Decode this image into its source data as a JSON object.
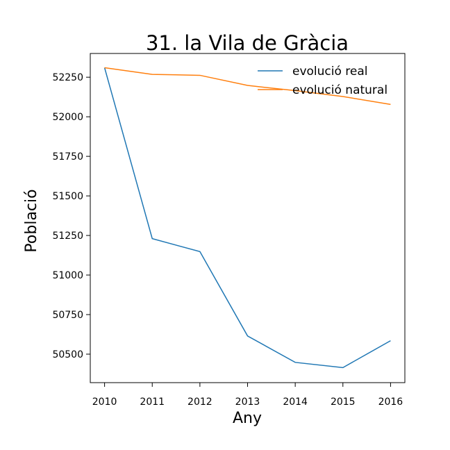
{
  "chart_data": {
    "type": "line",
    "title": "31. la Vila de Gràcia",
    "xlabel": "Any",
    "ylabel": "Població",
    "x": [
      2010,
      2011,
      2012,
      2013,
      2014,
      2015,
      2016
    ],
    "xlim": [
      2009.7,
      2016.3
    ],
    "ylim": [
      50320,
      52400
    ],
    "yticks": [
      50500,
      50750,
      51000,
      51250,
      51500,
      51750,
      52000,
      52250
    ],
    "grid": false,
    "legend_position": "top-right",
    "series": [
      {
        "name": "evolució real",
        "color": "#1f77b4",
        "values": [
          52310,
          51230,
          51148,
          50615,
          50448,
          50415,
          50585
        ]
      },
      {
        "name": "evolució natural",
        "color": "#ff7f0e",
        "values": [
          52310,
          52268,
          52262,
          52198,
          52165,
          52128,
          52078
        ]
      }
    ]
  }
}
